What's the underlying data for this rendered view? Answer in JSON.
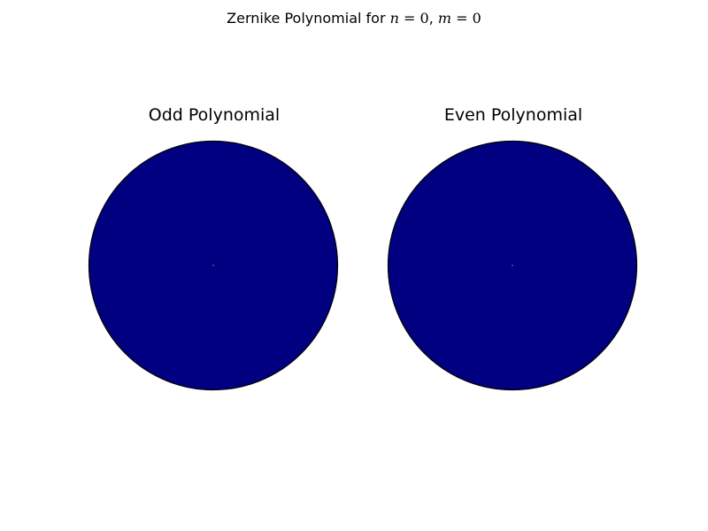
{
  "figure": {
    "suptitle_prefix": "Zernike Polynomial for ",
    "n_symbol": "n",
    "m_symbol": "m",
    "equals": " = ",
    "separator": ", ",
    "n_value": "0",
    "m_value": "0"
  },
  "chart_data": [
    {
      "type": "heatmap",
      "title": "Odd Polynomial",
      "shape": "unit-disk",
      "n": 0,
      "m": 0,
      "values": "constant",
      "fill_color": "#000080",
      "center_dot_color": "#ffffff",
      "edge_color": "#000000",
      "axes_visible": false,
      "grid": false,
      "legend": "none"
    },
    {
      "type": "heatmap",
      "title": "Even Polynomial",
      "shape": "unit-disk",
      "n": 0,
      "m": 0,
      "values": "constant",
      "fill_color": "#000080",
      "center_dot_color": "#ffffff",
      "edge_color": "#000000",
      "axes_visible": false,
      "grid": false,
      "legend": "none"
    }
  ]
}
